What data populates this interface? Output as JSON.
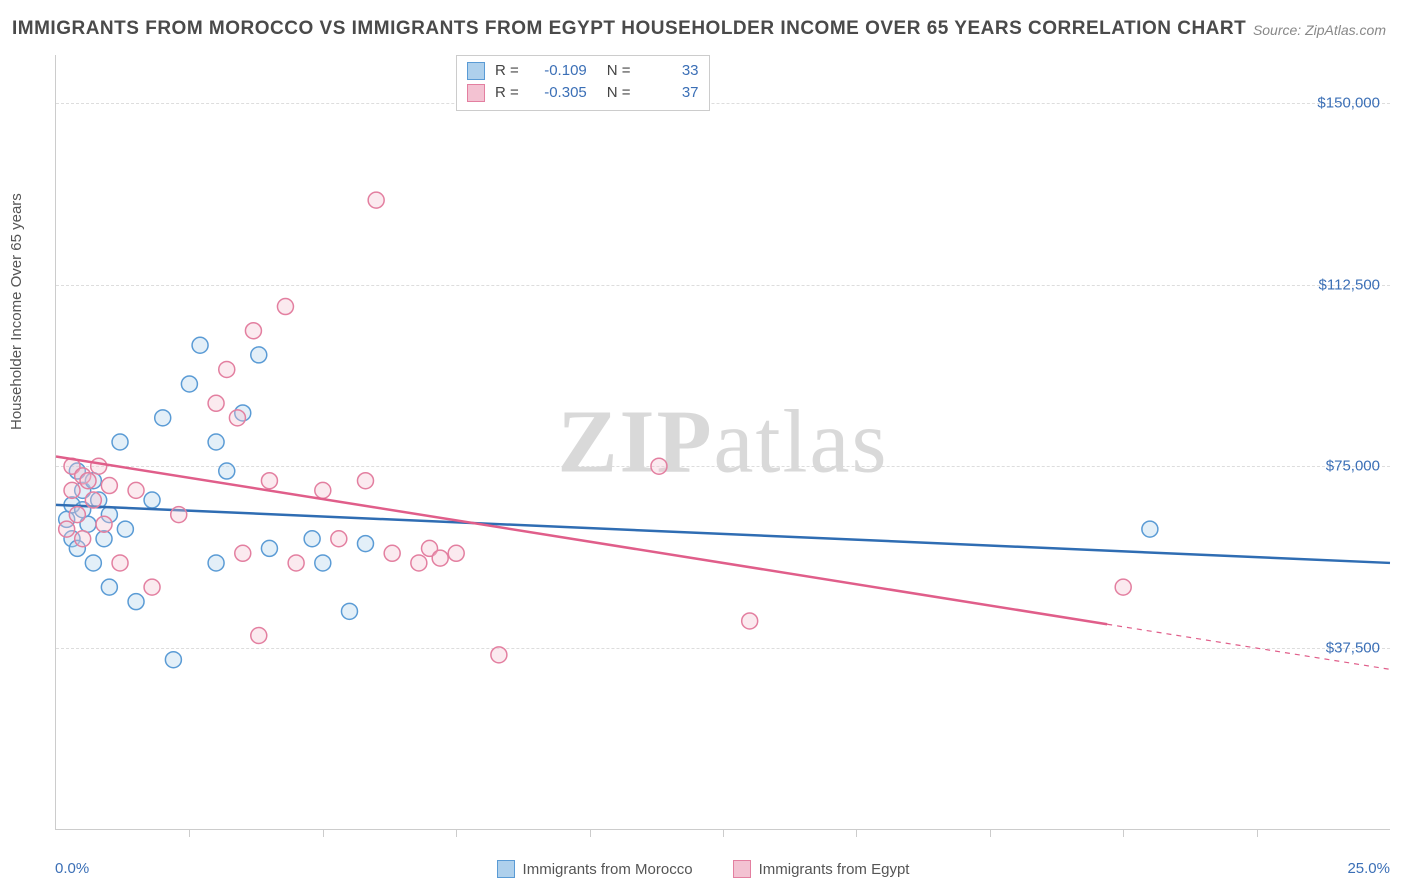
{
  "title": "IMMIGRANTS FROM MOROCCO VS IMMIGRANTS FROM EGYPT HOUSEHOLDER INCOME OVER 65 YEARS CORRELATION CHART",
  "source_label": "Source:",
  "source_value": "ZipAtlas.com",
  "watermark_a": "ZIP",
  "watermark_b": "atlas",
  "yaxis_title": "Householder Income Over 65 years",
  "chart": {
    "type": "scatter",
    "xlim": [
      0,
      25
    ],
    "ylim": [
      0,
      160000
    ],
    "x_min_label": "0.0%",
    "x_max_label": "25.0%",
    "x_ticks": [
      2.5,
      5,
      7.5,
      10,
      12.5,
      15,
      17.5,
      20,
      22.5
    ],
    "y_gridlines": [
      {
        "value": 37500,
        "label": "$37,500"
      },
      {
        "value": 75000,
        "label": "$75,000"
      },
      {
        "value": 112500,
        "label": "$112,500"
      },
      {
        "value": 150000,
        "label": "$150,000"
      }
    ],
    "background_color": "#ffffff",
    "grid_color": "#dddddd",
    "axis_color": "#cccccc",
    "tick_label_color": "#3b6fb6",
    "marker_radius": 8,
    "marker_fill_opacity": 0.35,
    "marker_stroke_width": 1.5,
    "series": [
      {
        "name": "Immigrants from Morocco",
        "color_stroke": "#5a9bd5",
        "color_fill": "#aed0ec",
        "line_color": "#2f6db3",
        "line_width": 2.5,
        "R": "-0.109",
        "N": "33",
        "trend": {
          "x1": 0,
          "y1": 67000,
          "x2": 25,
          "y2": 55000,
          "solid_until_x": 25
        },
        "points": [
          [
            0.2,
            64000
          ],
          [
            0.3,
            60000
          ],
          [
            0.3,
            67000
          ],
          [
            0.4,
            74000
          ],
          [
            0.4,
            58000
          ],
          [
            0.5,
            66000
          ],
          [
            0.5,
            70000
          ],
          [
            0.6,
            63000
          ],
          [
            0.7,
            72000
          ],
          [
            0.7,
            55000
          ],
          [
            0.8,
            68000
          ],
          [
            0.9,
            60000
          ],
          [
            1.0,
            65000
          ],
          [
            1.0,
            50000
          ],
          [
            1.2,
            80000
          ],
          [
            1.3,
            62000
          ],
          [
            1.5,
            47000
          ],
          [
            1.8,
            68000
          ],
          [
            2.0,
            85000
          ],
          [
            2.2,
            35000
          ],
          [
            2.5,
            92000
          ],
          [
            2.7,
            100000
          ],
          [
            3.0,
            80000
          ],
          [
            3.0,
            55000
          ],
          [
            3.2,
            74000
          ],
          [
            3.5,
            86000
          ],
          [
            3.8,
            98000
          ],
          [
            4.0,
            58000
          ],
          [
            4.8,
            60000
          ],
          [
            5.0,
            55000
          ],
          [
            5.5,
            45000
          ],
          [
            5.8,
            59000
          ],
          [
            20.5,
            62000
          ]
        ]
      },
      {
        "name": "Immigrants from Egypt",
        "color_stroke": "#e37fa0",
        "color_fill": "#f3c2d2",
        "line_color": "#e05e8a",
        "line_width": 2.5,
        "R": "-0.305",
        "N": "37",
        "trend": {
          "x1": 0,
          "y1": 77000,
          "x2": 25,
          "y2": 33000,
          "solid_until_x": 19.7
        },
        "points": [
          [
            0.2,
            62000
          ],
          [
            0.3,
            70000
          ],
          [
            0.3,
            75000
          ],
          [
            0.4,
            65000
          ],
          [
            0.5,
            73000
          ],
          [
            0.5,
            60000
          ],
          [
            0.6,
            72000
          ],
          [
            0.7,
            68000
          ],
          [
            0.8,
            75000
          ],
          [
            0.9,
            63000
          ],
          [
            1.0,
            71000
          ],
          [
            1.2,
            55000
          ],
          [
            1.5,
            70000
          ],
          [
            1.8,
            50000
          ],
          [
            2.3,
            65000
          ],
          [
            3.0,
            88000
          ],
          [
            3.2,
            95000
          ],
          [
            3.4,
            85000
          ],
          [
            3.5,
            57000
          ],
          [
            3.7,
            103000
          ],
          [
            3.8,
            40000
          ],
          [
            4.0,
            72000
          ],
          [
            4.3,
            108000
          ],
          [
            4.5,
            55000
          ],
          [
            5.0,
            70000
          ],
          [
            5.3,
            60000
          ],
          [
            5.8,
            72000
          ],
          [
            6.0,
            130000
          ],
          [
            6.3,
            57000
          ],
          [
            6.8,
            55000
          ],
          [
            7.0,
            58000
          ],
          [
            7.2,
            56000
          ],
          [
            7.5,
            57000
          ],
          [
            8.3,
            36000
          ],
          [
            11.3,
            75000
          ],
          [
            13.0,
            43000
          ],
          [
            20.0,
            50000
          ]
        ]
      }
    ]
  }
}
